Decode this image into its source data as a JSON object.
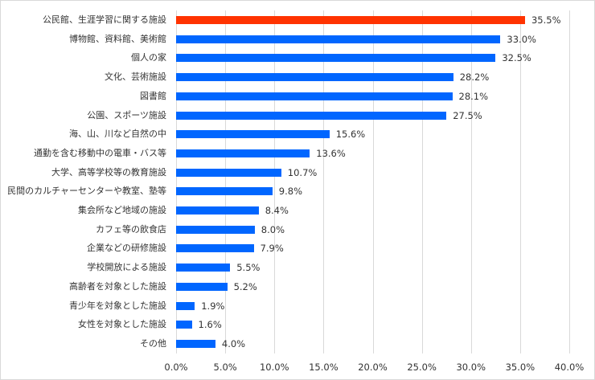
{
  "chart_data": {
    "type": "bar",
    "orientation": "horizontal",
    "title": "",
    "xlabel": "",
    "ylabel": "",
    "xlim": [
      0,
      40
    ],
    "grid": true,
    "legend": null,
    "categories": [
      "公民館、生涯学習に関する施設",
      "博物館、資料館、美術館",
      "個人の家",
      "文化、芸術施設",
      "図書館",
      "公園、スポーツ施設",
      "海、山、川など自然の中",
      "通勤を含む移動中の電車・バス等",
      "大学、高等学校等の教育施設",
      "民間のカルチャーセンターや教室、塾等",
      "集会所など地域の施設",
      "カフェ等の飲食店",
      "企業などの研修施設",
      "学校開放による施設",
      "高齢者を対象とした施設",
      "青少年を対象とした施設",
      "女性を対象とした施設",
      "その他"
    ],
    "values": [
      35.5,
      33.0,
      32.5,
      28.2,
      28.1,
      27.5,
      15.6,
      13.6,
      10.7,
      9.8,
      8.4,
      8.0,
      7.9,
      5.5,
      5.2,
      1.9,
      1.6,
      4.0
    ],
    "value_labels": [
      "35.5%",
      "33.0%",
      "32.5%",
      "28.2%",
      "28.1%",
      "27.5%",
      "15.6%",
      "13.6%",
      "10.7%",
      "9.8%",
      "8.4%",
      "8.0%",
      "7.9%",
      "5.5%",
      "5.2%",
      "1.9%",
      "1.6%",
      "4.0%"
    ],
    "x_ticks": [
      "0.0%",
      "5.0%",
      "10.0%",
      "15.0%",
      "20.0%",
      "25.0%",
      "30.0%",
      "35.0%",
      "40.0%"
    ],
    "highlight_index": 0,
    "colors": {
      "highlight": "#FF3300",
      "default": "#0066FF",
      "grid": "#D9D9D9",
      "text": "#333333"
    }
  }
}
